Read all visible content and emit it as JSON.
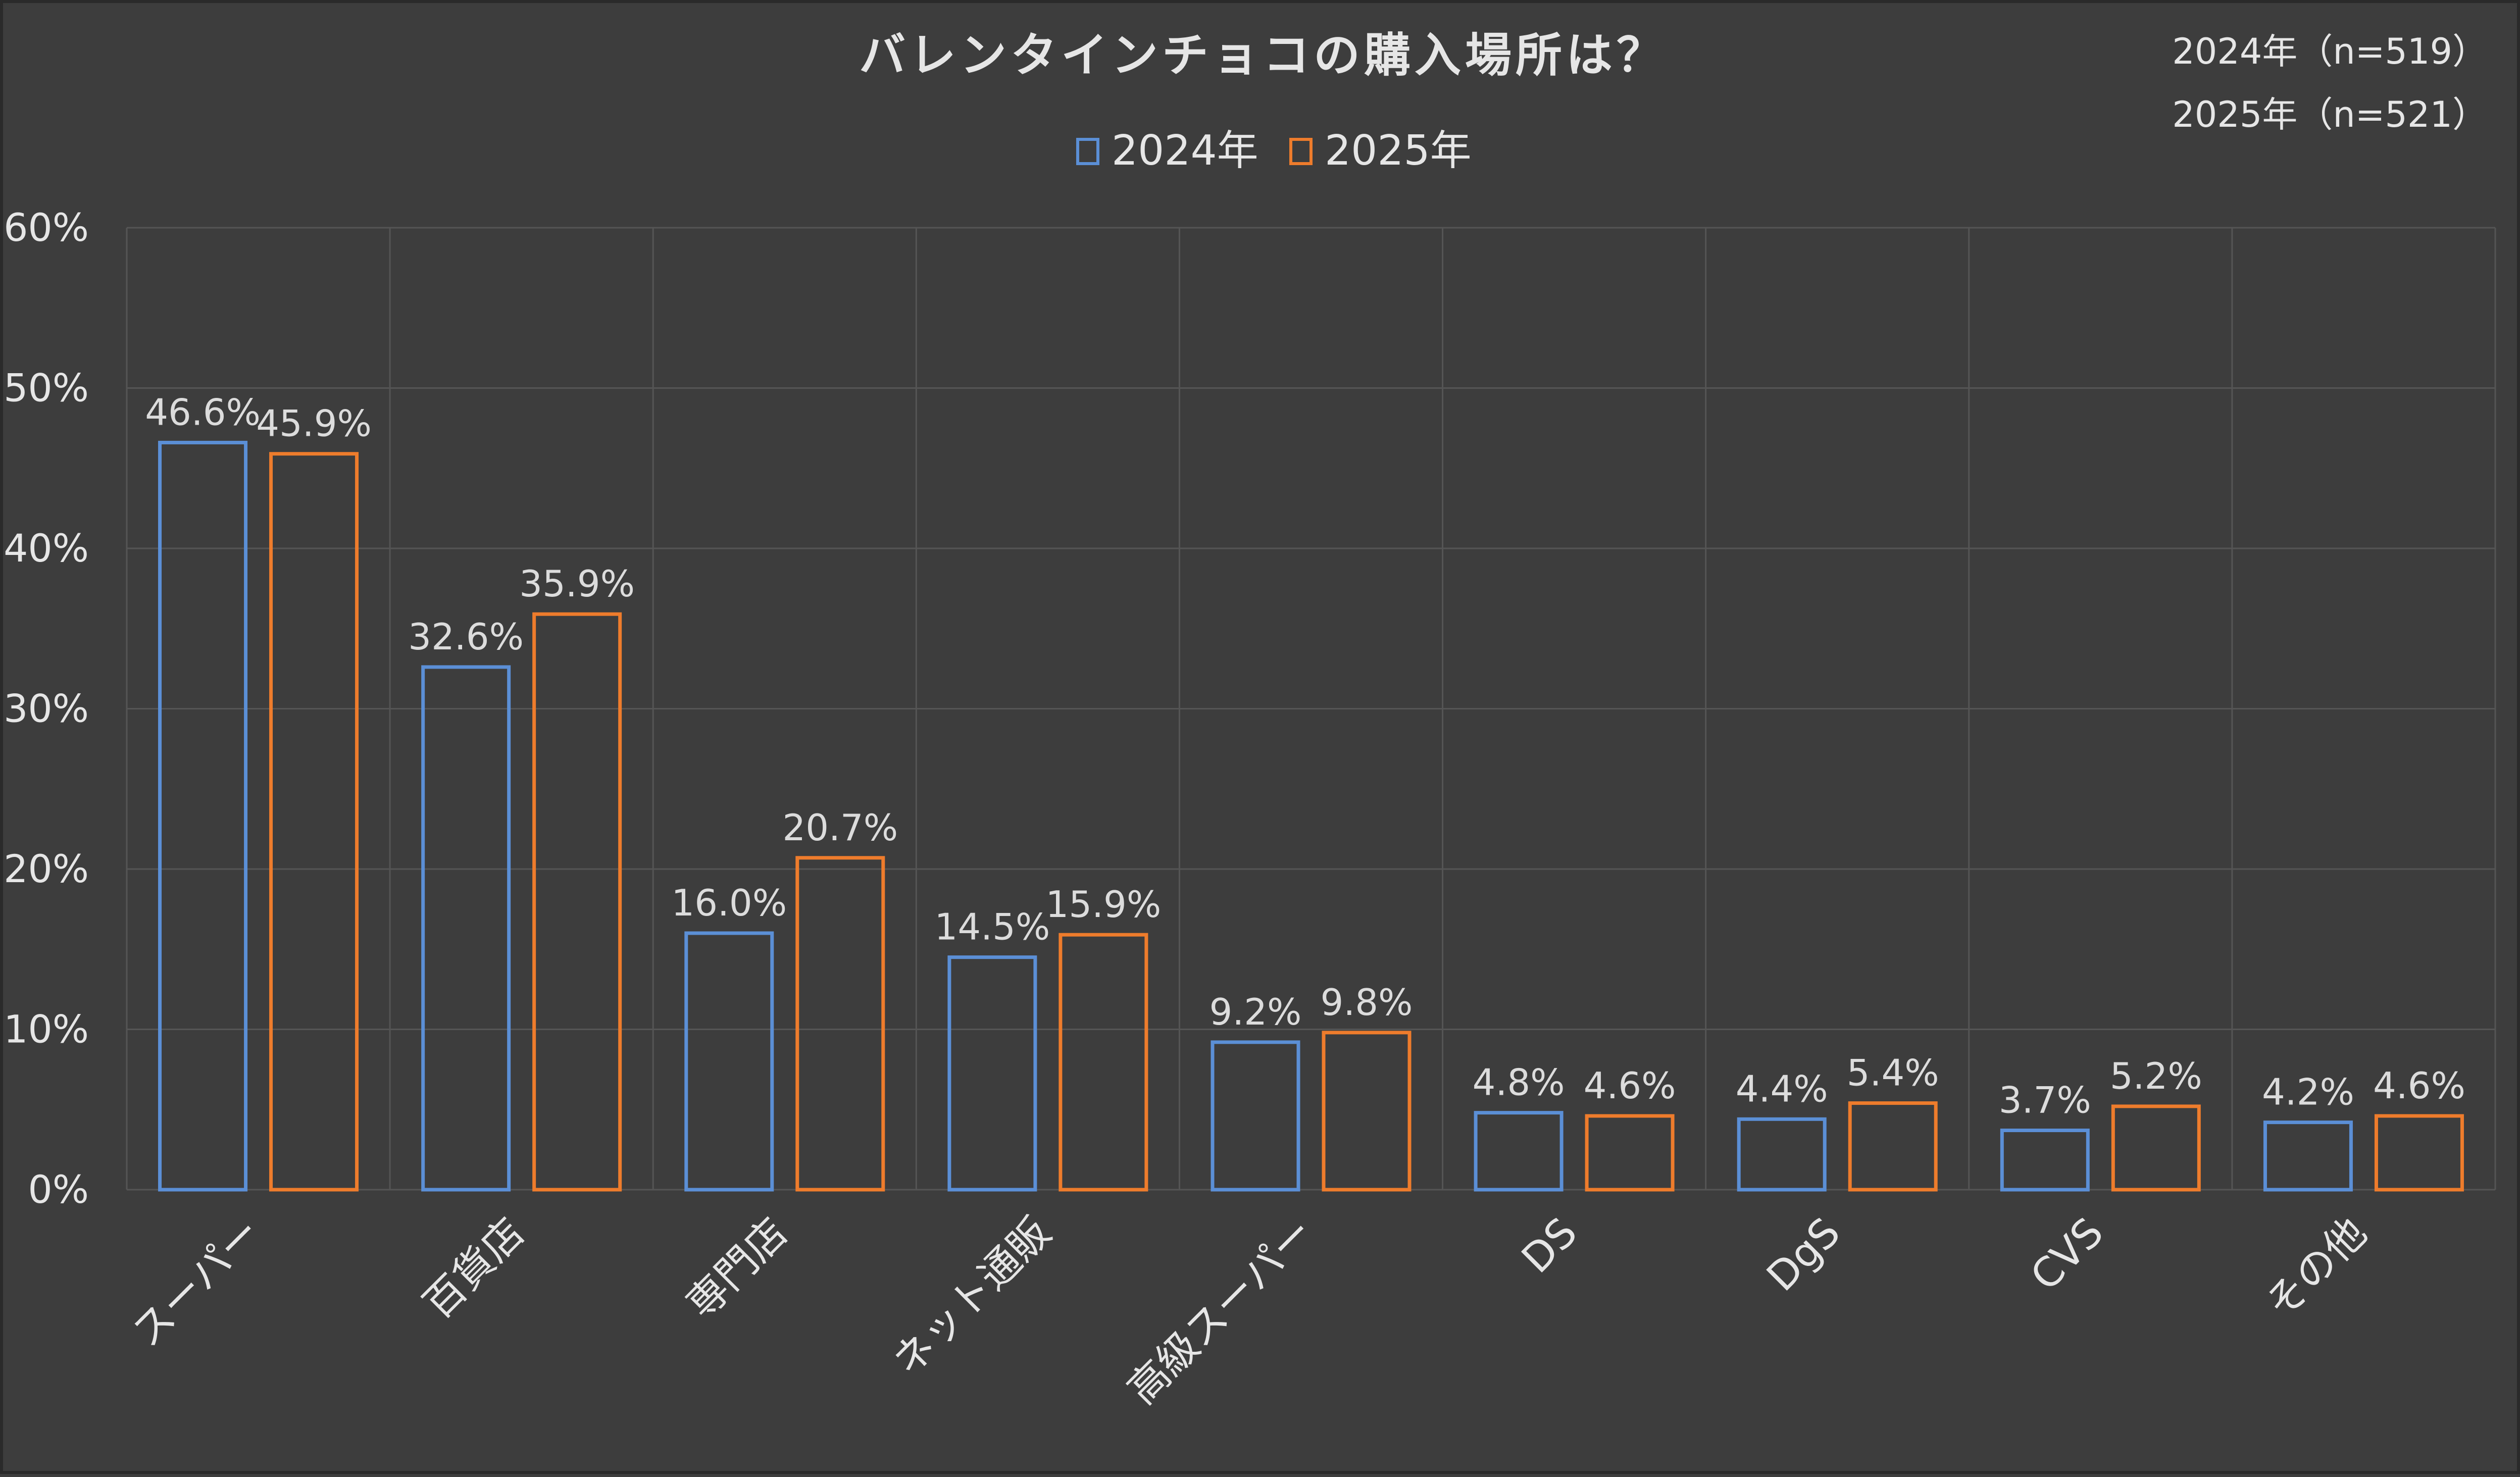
{
  "chart_data": {
    "type": "bar",
    "title": "バレンタインチョコの購入場所は？",
    "notes": [
      "2024年（n=519）",
      "2025年（n=521）"
    ],
    "categories": [
      "スーパー",
      "百貨店",
      "専門店",
      "ネット通販",
      "高級スーパー",
      "DS",
      "DgS",
      "CVS",
      "その他"
    ],
    "series": [
      {
        "name": "2024年",
        "color": "#5b8fd6",
        "values": [
          46.6,
          32.6,
          16.0,
          14.5,
          9.2,
          4.8,
          4.4,
          3.7,
          4.2
        ],
        "labels": [
          "46.6%",
          "32.6%",
          "16.0%",
          "14.5%",
          "9.2%",
          "4.8%",
          "4.4%",
          "3.7%",
          "4.2%"
        ]
      },
      {
        "name": "2025年",
        "color": "#ee7c2c",
        "values": [
          45.9,
          35.9,
          20.7,
          15.9,
          9.8,
          4.6,
          5.4,
          5.2,
          4.6
        ],
        "labels": [
          "45.9%",
          "35.9%",
          "20.7%",
          "15.9%",
          "9.8%",
          "4.6%",
          "5.4%",
          "5.2%",
          "4.6%"
        ]
      }
    ],
    "yticks": [
      "0%",
      "10%",
      "20%",
      "30%",
      "40%",
      "50%",
      "60%"
    ],
    "ylim": [
      0,
      60
    ],
    "ytick_step": 10,
    "grid": true,
    "legend_position": "top-center",
    "background": "#3d3d3d",
    "text_color": "#e6e6e6",
    "grid_color": "#555555"
  }
}
